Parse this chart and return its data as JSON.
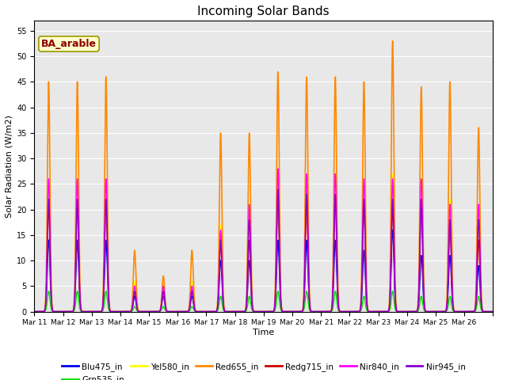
{
  "title": "Incoming Solar Bands",
  "xlabel": "Time",
  "ylabel": "Solar Radiation (W/m2)",
  "ylim": [
    0,
    57
  ],
  "yticks": [
    0,
    5,
    10,
    15,
    20,
    25,
    30,
    35,
    40,
    45,
    50,
    55
  ],
  "annotation": "BA_arable",
  "series": {
    "Blu475_in": {
      "color": "#0000ee",
      "lw": 1.0
    },
    "Grn535_in": {
      "color": "#00dd00",
      "lw": 1.0
    },
    "Yel580_in": {
      "color": "#ffff00",
      "lw": 1.0
    },
    "Red655_in": {
      "color": "#ff8800",
      "lw": 1.2
    },
    "Redg715_in": {
      "color": "#cc0000",
      "lw": 1.0
    },
    "Nir840_in": {
      "color": "#ff00ff",
      "lw": 1.0
    },
    "Nir945_in": {
      "color": "#8800cc",
      "lw": 1.0
    }
  },
  "bg_color": "#e8e8e8",
  "x_tick_labels": [
    "Mar 11",
    "Mar 12",
    "Mar 13",
    "Mar 14",
    "Mar 15",
    "Mar 16",
    "Mar 17",
    "Mar 18",
    "Mar 19",
    "Mar 20",
    "Mar 21",
    "Mar 22",
    "Mar 23",
    "Mar 24",
    "Mar 25",
    "Mar 26"
  ],
  "orange_peaks": [
    45,
    45,
    46,
    12,
    7,
    12,
    35,
    35,
    47,
    46,
    46,
    45,
    53,
    44,
    45,
    36
  ],
  "magenta_peaks": [
    26,
    26,
    26,
    5,
    5,
    5,
    16,
    21,
    28,
    27,
    27,
    26,
    26,
    26,
    21,
    21
  ],
  "red_peaks": [
    21,
    21,
    22,
    4,
    4,
    4,
    14,
    14,
    22,
    22,
    22,
    20,
    20,
    20,
    17,
    14
  ],
  "blue_peaks": [
    14,
    14,
    14,
    3,
    3,
    3,
    10,
    10,
    14,
    14,
    14,
    12,
    16,
    11,
    11,
    9
  ],
  "yel_peaks": [
    22,
    22,
    23,
    6,
    4,
    6,
    17,
    17,
    24,
    23,
    23,
    22,
    27,
    22,
    22,
    18
  ],
  "purple_peaks": [
    22,
    22,
    22,
    4,
    4,
    4,
    14,
    18,
    24,
    23,
    23,
    22,
    22,
    22,
    18,
    18
  ],
  "grn_peaks": [
    4,
    4,
    4,
    1,
    1,
    1,
    3,
    3,
    4,
    4,
    4,
    3,
    4,
    3,
    3,
    3
  ]
}
